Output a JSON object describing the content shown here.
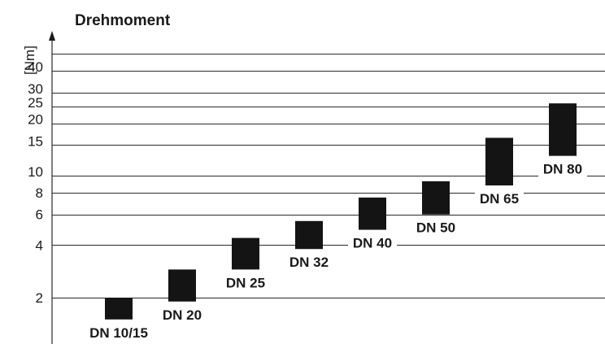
{
  "chart_data": {
    "type": "bar",
    "title": "Drehmoment",
    "ylabel": "[Nm]",
    "xlabel": "",
    "yscale": "log",
    "ylim": [
      1.4,
      50
    ],
    "yticks": [
      2,
      4,
      6,
      8,
      10,
      15,
      20,
      25,
      30,
      40
    ],
    "grid": true,
    "series": [
      {
        "categories": [
          "DN 10/15",
          "DN 20",
          "DN 25",
          "DN 32",
          "DN 40",
          "DN 50",
          "DN 65",
          "DN 80"
        ],
        "low": [
          1.5,
          1.9,
          2.9,
          3.8,
          4.9,
          6.0,
          8.8,
          13.0
        ],
        "high": [
          2.0,
          2.9,
          4.4,
          5.5,
          7.5,
          9.3,
          16.5,
          26.0
        ]
      }
    ],
    "colors": {
      "bar": "#141414",
      "grid": "#2a2a2a"
    }
  }
}
